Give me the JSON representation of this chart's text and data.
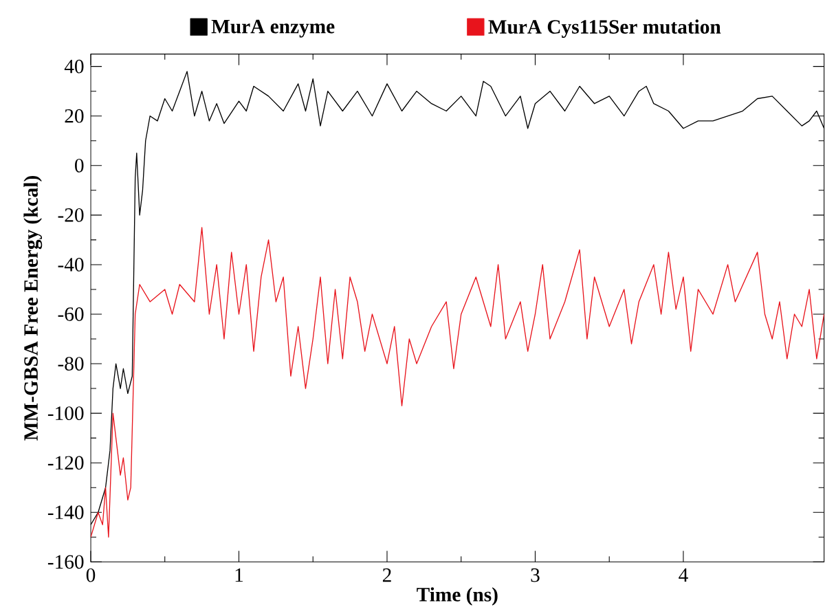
{
  "chart_data": {
    "type": "line",
    "xlabel": "Time (ns)",
    "ylabel": "MM-GBSA Free Energy (kcal)",
    "xlim": [
      0,
      4.95
    ],
    "ylim": [
      -160,
      45
    ],
    "xticks": [
      0,
      1,
      2,
      3,
      4
    ],
    "yticks": [
      -160,
      -140,
      -120,
      -100,
      -80,
      -60,
      -40,
      -20,
      0,
      20,
      40
    ],
    "legend": "top",
    "marker": "none",
    "line_style": "solid",
    "grid": false,
    "series": [
      {
        "name": "MurA enzyme",
        "color": "#000000",
        "x": [
          0,
          0.05,
          0.1,
          0.13,
          0.15,
          0.17,
          0.2,
          0.22,
          0.25,
          0.28,
          0.3,
          0.31,
          0.33,
          0.35,
          0.37,
          0.4,
          0.45,
          0.5,
          0.55,
          0.6,
          0.65,
          0.7,
          0.75,
          0.8,
          0.85,
          0.9,
          1.0,
          1.05,
          1.1,
          1.2,
          1.3,
          1.4,
          1.45,
          1.5,
          1.55,
          1.6,
          1.7,
          1.8,
          1.9,
          2.0,
          2.1,
          2.2,
          2.3,
          2.4,
          2.5,
          2.6,
          2.65,
          2.7,
          2.8,
          2.9,
          2.95,
          3.0,
          3.1,
          3.2,
          3.3,
          3.4,
          3.5,
          3.6,
          3.7,
          3.75,
          3.8,
          3.9,
          4.0,
          4.1,
          4.2,
          4.3,
          4.4,
          4.5,
          4.6,
          4.7,
          4.8,
          4.85,
          4.9,
          4.95
        ],
        "values": [
          -145,
          -140,
          -130,
          -115,
          -90,
          -80,
          -90,
          -82,
          -92,
          -85,
          -5,
          5,
          -20,
          -10,
          10,
          20,
          18,
          27,
          22,
          30,
          38,
          20,
          30,
          18,
          25,
          17,
          26,
          22,
          32,
          28,
          22,
          33,
          22,
          35,
          16,
          30,
          22,
          30,
          20,
          33,
          22,
          30,
          25,
          22,
          28,
          20,
          34,
          32,
          20,
          28,
          15,
          25,
          30,
          22,
          32,
          25,
          28,
          20,
          30,
          32,
          25,
          22,
          15,
          18,
          18,
          20,
          22,
          27,
          28,
          22,
          16,
          18,
          22,
          15
        ]
      },
      {
        "name": "MurA Cys115Ser mutation",
        "color": "#e8141c",
        "x": [
          0,
          0.05,
          0.08,
          0.1,
          0.12,
          0.15,
          0.17,
          0.2,
          0.22,
          0.25,
          0.27,
          0.3,
          0.33,
          0.4,
          0.5,
          0.55,
          0.6,
          0.7,
          0.75,
          0.8,
          0.85,
          0.9,
          0.95,
          1.0,
          1.05,
          1.1,
          1.15,
          1.2,
          1.25,
          1.3,
          1.35,
          1.4,
          1.45,
          1.5,
          1.55,
          1.6,
          1.65,
          1.7,
          1.75,
          1.8,
          1.85,
          1.9,
          2.0,
          2.05,
          2.1,
          2.15,
          2.2,
          2.3,
          2.4,
          2.45,
          2.5,
          2.6,
          2.7,
          2.75,
          2.8,
          2.9,
          2.95,
          3.0,
          3.05,
          3.1,
          3.2,
          3.3,
          3.35,
          3.4,
          3.5,
          3.6,
          3.65,
          3.7,
          3.8,
          3.85,
          3.9,
          3.95,
          4.0,
          4.05,
          4.1,
          4.2,
          4.3,
          4.35,
          4.5,
          4.55,
          4.6,
          4.65,
          4.7,
          4.75,
          4.8,
          4.85,
          4.9,
          4.95
        ],
        "values": [
          -150,
          -140,
          -145,
          -130,
          -150,
          -100,
          -110,
          -125,
          -118,
          -135,
          -130,
          -60,
          -48,
          -55,
          -50,
          -60,
          -48,
          -55,
          -25,
          -60,
          -40,
          -70,
          -35,
          -60,
          -40,
          -75,
          -45,
          -30,
          -55,
          -45,
          -85,
          -65,
          -90,
          -70,
          -45,
          -80,
          -50,
          -78,
          -45,
          -55,
          -75,
          -60,
          -80,
          -65,
          -97,
          -70,
          -80,
          -65,
          -55,
          -82,
          -60,
          -45,
          -65,
          -40,
          -70,
          -55,
          -75,
          -60,
          -40,
          -70,
          -55,
          -34,
          -70,
          -45,
          -65,
          -50,
          -72,
          -55,
          -40,
          -60,
          -35,
          -58,
          -45,
          -75,
          -50,
          -60,
          -40,
          -55,
          -35,
          -60,
          -70,
          -55,
          -78,
          -60,
          -65,
          -50,
          -78,
          -60
        ]
      }
    ]
  }
}
